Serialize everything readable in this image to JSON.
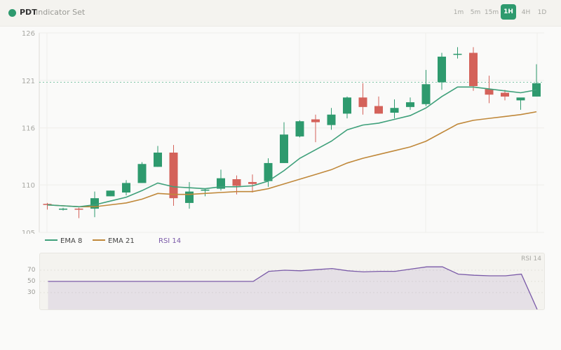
{
  "header": {
    "symbol": "PDT",
    "subtitle": "Indicator Set",
    "timeframes": [
      "1m",
      "5m",
      "15m",
      "1H",
      "4H",
      "1D"
    ],
    "active_timeframe": "1H"
  },
  "legend": {
    "ema8": "EMA 8",
    "ema21": "EMA 21",
    "rsi": "RSI 14"
  },
  "rsi_panel": {
    "label": "RSI 14",
    "ticks": [
      "70",
      "50",
      "30"
    ]
  },
  "colors": {
    "up": "#2e9a6e",
    "down": "#d4625a",
    "ema8": "#3ea07a",
    "ema21": "#c0883a",
    "rsi": "#7a5aa8",
    "ref_line": "#6cbf9a"
  },
  "chart_data": [
    {
      "type": "candlestick",
      "title": "",
      "ylim": [
        105,
        126
      ],
      "yticks": [
        105,
        110,
        116,
        121,
        126
      ],
      "reference_line": 120.8,
      "candles": [
        {
          "open": 108.0,
          "high": 108.1,
          "low": 107.4,
          "close": 107.9
        },
        {
          "open": 107.5,
          "high": 107.6,
          "low": 107.3,
          "close": 107.5
        },
        {
          "open": 107.5,
          "high": 107.6,
          "low": 106.5,
          "close": 107.4
        },
        {
          "open": 107.5,
          "high": 109.3,
          "low": 106.6,
          "close": 108.6
        },
        {
          "open": 108.8,
          "high": 109.4,
          "low": 108.8,
          "close": 109.4
        },
        {
          "open": 109.2,
          "high": 110.5,
          "low": 108.9,
          "close": 110.2
        },
        {
          "open": 110.2,
          "high": 112.4,
          "low": 110.2,
          "close": 112.2
        },
        {
          "open": 111.9,
          "high": 114.1,
          "low": 111.9,
          "close": 113.4
        },
        {
          "open": 113.4,
          "high": 114.2,
          "low": 107.8,
          "close": 108.6
        },
        {
          "open": 108.1,
          "high": 110.3,
          "low": 107.5,
          "close": 109.3
        },
        {
          "open": 109.4,
          "high": 109.6,
          "low": 108.8,
          "close": 109.5
        },
        {
          "open": 109.6,
          "high": 111.6,
          "low": 109.4,
          "close": 110.7
        },
        {
          "open": 110.6,
          "high": 111.0,
          "low": 109.0,
          "close": 109.9
        },
        {
          "open": 110.3,
          "high": 111.1,
          "low": 109.2,
          "close": 110.1
        },
        {
          "open": 110.4,
          "high": 112.8,
          "low": 109.8,
          "close": 112.3
        },
        {
          "open": 112.3,
          "high": 116.6,
          "low": 112.3,
          "close": 115.3
        },
        {
          "open": 115.1,
          "high": 116.8,
          "low": 115.0,
          "close": 116.7
        },
        {
          "open": 116.9,
          "high": 117.4,
          "low": 114.5,
          "close": 116.6
        },
        {
          "open": 116.3,
          "high": 118.1,
          "low": 115.8,
          "close": 117.4
        },
        {
          "open": 117.5,
          "high": 119.3,
          "low": 117.0,
          "close": 119.2
        },
        {
          "open": 119.2,
          "high": 120.7,
          "low": 117.4,
          "close": 118.2
        },
        {
          "open": 118.3,
          "high": 119.3,
          "low": 117.5,
          "close": 117.5
        },
        {
          "open": 117.6,
          "high": 119.0,
          "low": 117.0,
          "close": 118.1
        },
        {
          "open": 118.2,
          "high": 119.2,
          "low": 117.9,
          "close": 118.7
        },
        {
          "open": 118.5,
          "high": 122.1,
          "low": 118.3,
          "close": 120.6
        },
        {
          "open": 120.8,
          "high": 123.9,
          "low": 120.0,
          "close": 123.5
        },
        {
          "open": 123.8,
          "high": 124.5,
          "low": 123.3,
          "close": 123.8
        },
        {
          "open": 123.9,
          "high": 124.5,
          "low": 119.9,
          "close": 120.4
        },
        {
          "open": 120.1,
          "high": 121.5,
          "low": 118.6,
          "close": 119.5
        },
        {
          "open": 119.7,
          "high": 120.0,
          "low": 118.9,
          "close": 119.3
        },
        {
          "open": 118.9,
          "high": 119.1,
          "low": 117.9,
          "close": 119.2
        },
        {
          "open": 119.3,
          "high": 122.7,
          "low": 119.3,
          "close": 120.7
        }
      ],
      "ema8": [
        107.9,
        107.8,
        107.7,
        107.9,
        108.3,
        108.7,
        109.4,
        110.2,
        109.8,
        109.7,
        109.6,
        109.8,
        109.8,
        109.9,
        110.4,
        111.5,
        112.8,
        113.7,
        114.6,
        115.8,
        116.3,
        116.5,
        116.9,
        117.3,
        118.1,
        119.3,
        120.3,
        120.3,
        120.1,
        119.9,
        119.7,
        120.0
      ],
      "ema21": [
        107.9,
        107.8,
        107.7,
        107.7,
        107.9,
        108.1,
        108.5,
        109.1,
        109.0,
        109.0,
        109.1,
        109.2,
        109.3,
        109.3,
        109.6,
        110.1,
        110.6,
        111.1,
        111.6,
        112.3,
        112.8,
        113.2,
        113.6,
        114.0,
        114.6,
        115.5,
        116.4,
        116.8,
        117.0,
        117.2,
        117.4,
        117.7
      ]
    },
    {
      "type": "area",
      "title": "RSI 14",
      "ylim": [
        0,
        100
      ],
      "yticks": [
        70,
        50,
        30
      ],
      "values": [
        50,
        50,
        50,
        50,
        50,
        50,
        50,
        50,
        50,
        50,
        50,
        50,
        50,
        50,
        68,
        70,
        69,
        71,
        73,
        69,
        67,
        68,
        68,
        72,
        76,
        76,
        63,
        61,
        60,
        60,
        63,
        0
      ]
    }
  ]
}
